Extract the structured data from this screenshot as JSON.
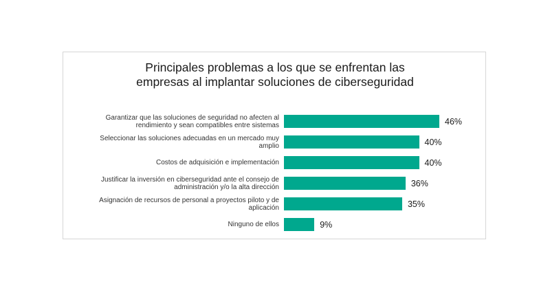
{
  "chart_data": {
    "type": "bar",
    "orientation": "horizontal",
    "title_lines": [
      "Principales problemas a los que se enfrentan las",
      "empresas al implantar soluciones de ciberseguridad"
    ],
    "categories": [
      "Garantizar que las soluciones de seguridad no afecten al rendimiento y sean compatibles entre sistemas",
      "Seleccionar las soluciones adecuadas en un mercado muy amplio",
      "Costos de adquisición e implementación",
      "Justificar la inversión en ciberseguridad ante el consejo de administración y/o la alta dirección",
      "Asignación de recursos de personal a proyectos piloto y de aplicación",
      "Ninguno de ellos"
    ],
    "values": [
      46,
      40,
      40,
      36,
      35,
      9
    ],
    "value_labels": [
      "46%",
      "40%",
      "40%",
      "36%",
      "35%",
      "9%"
    ],
    "unit": "%",
    "xlim": [
      0,
      50
    ],
    "grid": false,
    "legend": "none",
    "bar_color": "#00a88e"
  }
}
